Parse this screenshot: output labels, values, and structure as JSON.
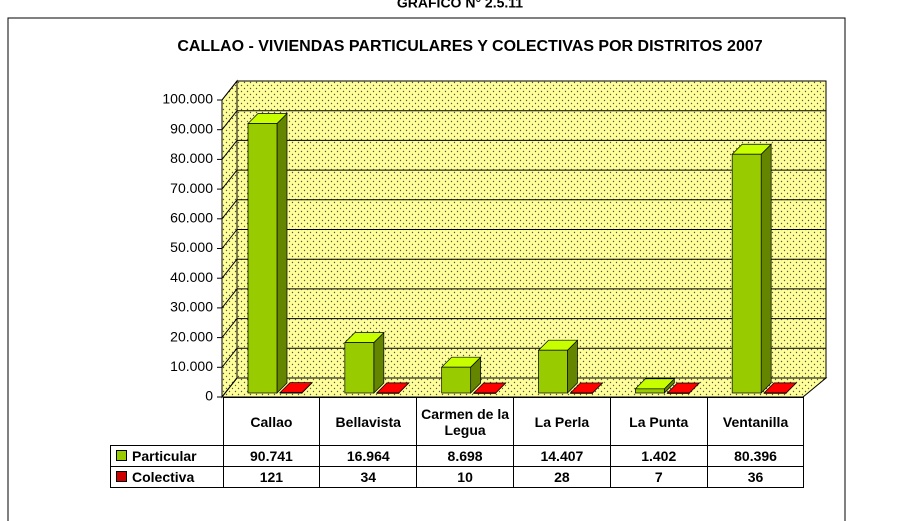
{
  "chart_data": {
    "type": "bar3d",
    "heading": "GRAFICO N° 2.5.11",
    "title": "CALLAO - VIVIENDAS PARTICULARES Y COLECTIVAS POR DISTRITOS 2007",
    "categories": [
      "Callao",
      "Bellavista",
      "Carmen de la Legua",
      "La Perla",
      "La Punta",
      "Ventanilla"
    ],
    "series": [
      {
        "name": "Particular",
        "color": "#99cc00",
        "values": [
          90741,
          16964,
          8698,
          14407,
          1402,
          80396
        ],
        "value_labels": [
          "90.741",
          "16.964",
          "8.698",
          "14.407",
          "1.402",
          "80.396"
        ]
      },
      {
        "name": "Colectiva",
        "color": "#cc0000",
        "values": [
          121,
          34,
          10,
          28,
          7,
          36
        ]
      }
    ],
    "ylim": [
      0,
      100000
    ],
    "yticks": [
      0,
      {
        "value": 10000,
        "label": "10.000"
      },
      {
        "value": 20000,
        "label": "20.000"
      },
      {
        "value": 30000,
        "label": "30.000"
      },
      {
        "value": 40000,
        "label": "40.000"
      },
      {
        "value": 50000,
        "label": "50.000"
      },
      {
        "value": 60000,
        "label": "60.000"
      },
      {
        "value": 70000,
        "label": "70.000"
      },
      {
        "value": 80000,
        "label": "80.000"
      },
      {
        "value": 90000,
        "label": "90.000"
      },
      {
        "value": 100000,
        "label": "100.000"
      }
    ],
    "grid": true,
    "wall_color": "#ffff99"
  }
}
